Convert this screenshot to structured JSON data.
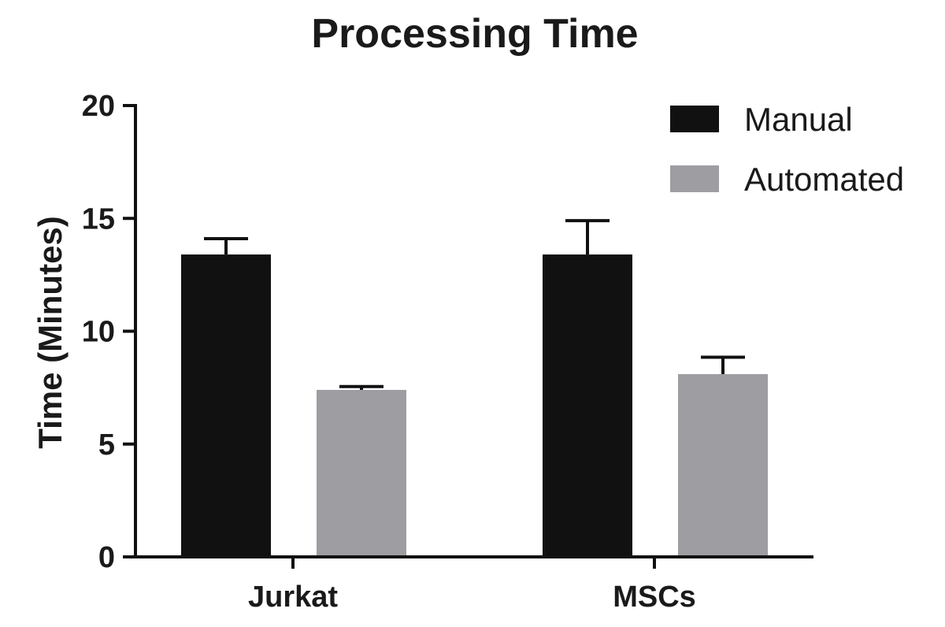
{
  "chart_data": {
    "type": "bar",
    "title": "Processing Time",
    "xlabel": "",
    "ylabel": "Time (Minutes)",
    "ylim": [
      0,
      20
    ],
    "yticks": [
      "0",
      "5",
      "10",
      "15",
      "20"
    ],
    "categories": [
      "Jurkat",
      "MSCs"
    ],
    "series": [
      {
        "name": "Manual",
        "color": "#111111",
        "values": [
          13.4,
          13.4
        ],
        "errors": [
          0.7,
          1.5
        ]
      },
      {
        "name": "Automated",
        "color": "#9d9da2",
        "values": [
          7.4,
          8.1
        ],
        "errors": [
          0.15,
          0.75
        ]
      }
    ],
    "legend_position": "top-right"
  }
}
